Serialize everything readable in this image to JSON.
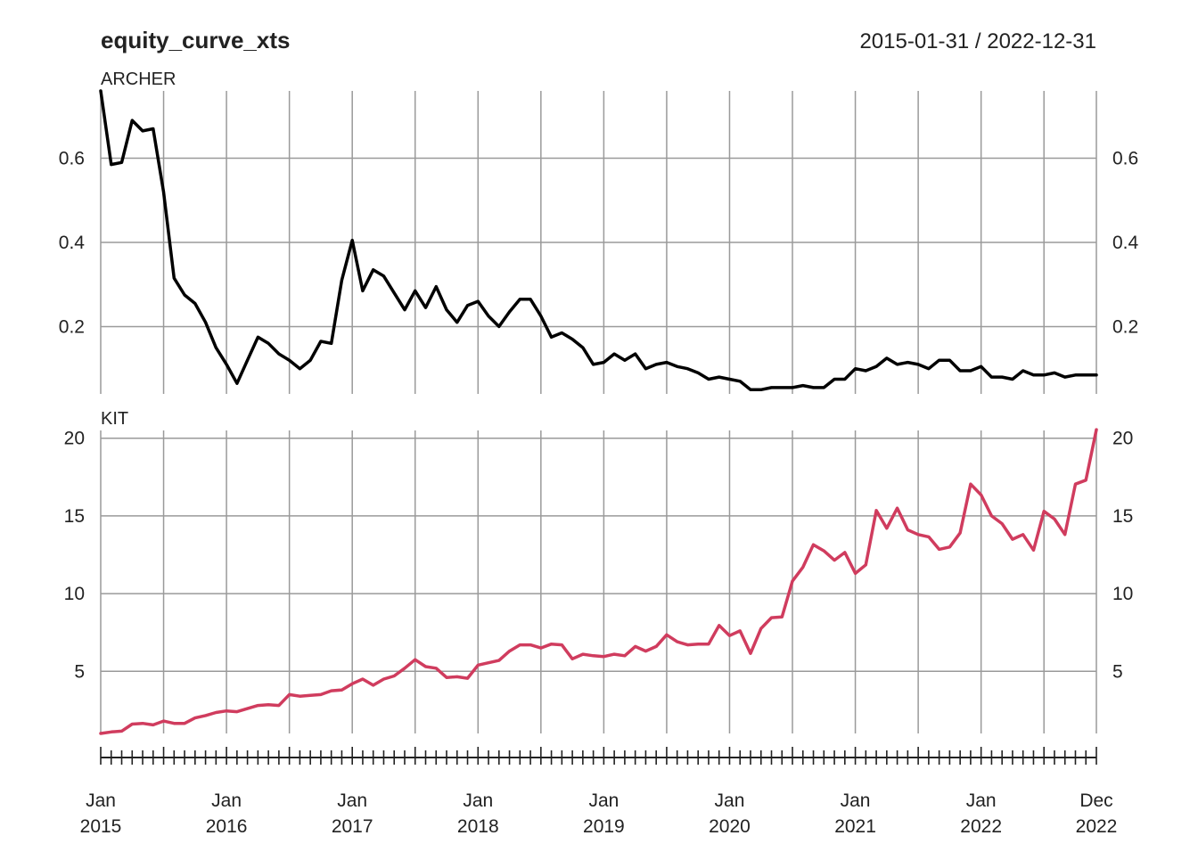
{
  "title": "equity_curve_xts",
  "date_range": "2015-01-31 / 2022-12-31",
  "colors": {
    "grid": "#9a9a9a",
    "archer": "#000000",
    "kit": "#d03c5e"
  },
  "chart_data": [
    {
      "type": "line",
      "panel": "ARCHER",
      "start": "2015-01",
      "frequency": "monthly",
      "ylim": [
        0.04,
        0.76
      ],
      "yticks": [
        0.2,
        0.4,
        0.6
      ],
      "ytick_labels": [
        "0.2",
        "0.4",
        "0.6"
      ],
      "grid": true,
      "series": [
        {
          "values": [
            0.76,
            0.585,
            0.59,
            0.69,
            0.665,
            0.67,
            0.52,
            0.315,
            0.275,
            0.255,
            0.21,
            0.15,
            0.11,
            0.065,
            0.12,
            0.175,
            0.16,
            0.135,
            0.12,
            0.1,
            0.12,
            0.165,
            0.16,
            0.31,
            0.405,
            0.285,
            0.335,
            0.32,
            0.28,
            0.24,
            0.285,
            0.245,
            0.295,
            0.24,
            0.21,
            0.25,
            0.26,
            0.225,
            0.2,
            0.235,
            0.265,
            0.265,
            0.225,
            0.175,
            0.185,
            0.17,
            0.15,
            0.11,
            0.115,
            0.135,
            0.12,
            0.135,
            0.1,
            0.11,
            0.115,
            0.105,
            0.1,
            0.09,
            0.075,
            0.08,
            0.075,
            0.07,
            0.05,
            0.05,
            0.055,
            0.055,
            0.055,
            0.06,
            0.055,
            0.055,
            0.075,
            0.075,
            0.1,
            0.095,
            0.105,
            0.125,
            0.11,
            0.115,
            0.11,
            0.1,
            0.12,
            0.12,
            0.095,
            0.095,
            0.105,
            0.08,
            0.08,
            0.075,
            0.095,
            0.085,
            0.085,
            0.09,
            0.08,
            0.085,
            0.085,
            0.085
          ]
        }
      ]
    },
    {
      "type": "line",
      "panel": "KIT",
      "start": "2015-01",
      "frequency": "monthly",
      "ylim": [
        1.0,
        20.5
      ],
      "yticks": [
        5,
        10,
        15,
        20
      ],
      "ytick_labels": [
        "5",
        "10",
        "15",
        "20"
      ],
      "grid": true,
      "series": [
        {
          "values": [
            1.0,
            1.1,
            1.15,
            1.6,
            1.65,
            1.55,
            1.8,
            1.65,
            1.65,
            2.0,
            2.15,
            2.35,
            2.45,
            2.4,
            2.6,
            2.8,
            2.85,
            2.8,
            3.5,
            3.4,
            3.45,
            3.5,
            3.75,
            3.8,
            4.2,
            4.5,
            4.1,
            4.5,
            4.7,
            5.2,
            5.75,
            5.3,
            5.2,
            4.6,
            4.65,
            4.55,
            5.4,
            5.55,
            5.7,
            6.3,
            6.7,
            6.7,
            6.5,
            6.75,
            6.7,
            5.8,
            6.1,
            6.0,
            5.95,
            6.1,
            6.0,
            6.6,
            6.3,
            6.6,
            7.35,
            6.9,
            6.7,
            6.75,
            6.75,
            7.95,
            7.3,
            7.6,
            6.15,
            7.75,
            8.45,
            8.5,
            10.8,
            11.7,
            13.15,
            12.75,
            12.15,
            12.65,
            11.3,
            11.85,
            15.35,
            14.2,
            15.5,
            14.1,
            13.8,
            13.65,
            12.85,
            13.0,
            13.9,
            17.05,
            16.35,
            15.0,
            14.5,
            13.5,
            13.8,
            12.8,
            15.3,
            14.8,
            13.8,
            17.05,
            17.3,
            20.55
          ]
        }
      ]
    }
  ],
  "x_axis": {
    "labels": [
      {
        "top": "Jan",
        "bottom": "2015"
      },
      {
        "top": "Jan",
        "bottom": "2016"
      },
      {
        "top": "Jan",
        "bottom": "2017"
      },
      {
        "top": "Jan",
        "bottom": "2018"
      },
      {
        "top": "Jan",
        "bottom": "2019"
      },
      {
        "top": "Jan",
        "bottom": "2020"
      },
      {
        "top": "Jan",
        "bottom": "2021"
      },
      {
        "top": "Jan",
        "bottom": "2022"
      },
      {
        "top": "Dec",
        "bottom": "2022"
      }
    ]
  }
}
